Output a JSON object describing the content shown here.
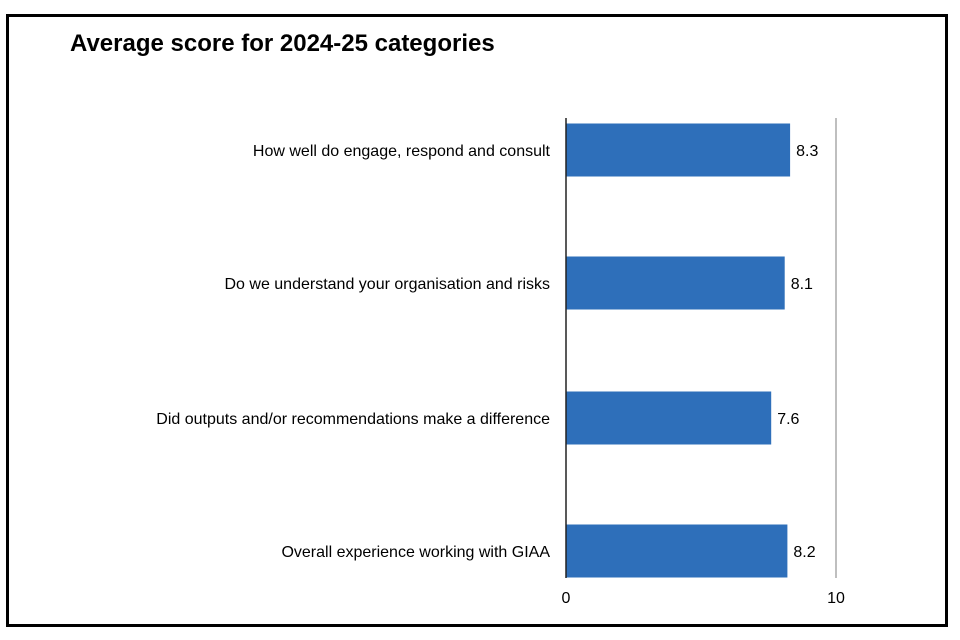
{
  "chart_data": {
    "type": "bar",
    "orientation": "horizontal",
    "title": "Average score for 2024-25 categories",
    "xlabel": "",
    "ylabel": "",
    "categories": [
      "How well do engage, respond and consult",
      "Do we understand your organisation and risks",
      "Did outputs and/or recommendations make a difference",
      "Overall experience working with GIAA"
    ],
    "values": [
      8.3,
      8.1,
      7.6,
      8.2
    ],
    "value_labels": [
      "8.3",
      "8.1",
      "7.6",
      "8.2"
    ],
    "xlim": [
      0,
      10
    ],
    "xticks": [
      "0",
      "10"
    ],
    "grid": false,
    "legend": "none",
    "bar_color": "#2e6fba"
  }
}
